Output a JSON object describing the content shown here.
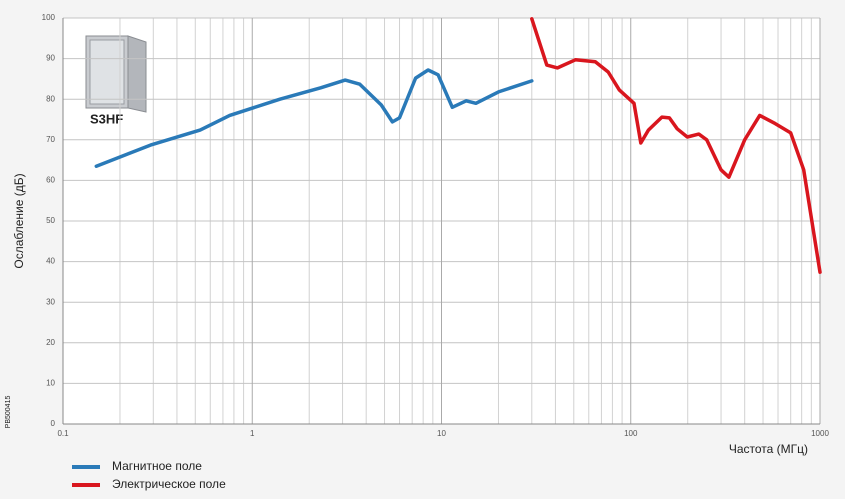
{
  "chart_data": {
    "type": "line",
    "y_label": "Ослабление (дБ)",
    "x_label": "Частота (МГц)",
    "annotations": [
      "S3HF",
      "PB500415"
    ],
    "log_x": true,
    "grid": true,
    "legend": "bottom-left",
    "xlim": [
      0.1,
      1000
    ],
    "xticks": [
      0.1,
      1,
      10,
      100,
      1000
    ],
    "ylim": [
      0,
      100
    ],
    "yticks": [
      0,
      10,
      20,
      30,
      40,
      50,
      60,
      70,
      80,
      90,
      100
    ],
    "series": [
      {
        "name": "Магнитное поле",
        "color": "#2a7ab8",
        "x": [
          0.15,
          0.29,
          0.53,
          0.76,
          1.4,
          2.3,
          3.1,
          3.7,
          4.8,
          5.5,
          6.0,
          7.3,
          8.5,
          9.6,
          11.4,
          13.5,
          15.2,
          20,
          30
        ],
        "values": [
          63.5,
          68.7,
          72.4,
          76,
          80,
          82.8,
          84.7,
          83.7,
          78.6,
          74.4,
          75.4,
          85.2,
          87.2,
          86,
          78,
          79.6,
          79,
          81.8,
          84.5
        ]
      },
      {
        "name": "Электрическое поле",
        "color": "#d9161e",
        "x": [
          30,
          36,
          41,
          51,
          65,
          76,
          87,
          104,
          113,
          124,
          146,
          160,
          176,
          199,
          229,
          252,
          300,
          330,
          400,
          480,
          580,
          700,
          820,
          1000
        ],
        "values": [
          99.8,
          88.4,
          87.7,
          89.7,
          89.2,
          86.7,
          82.3,
          79,
          69.2,
          72.4,
          75.6,
          75.4,
          72.7,
          70.7,
          71.4,
          70,
          62.6,
          60.8,
          70,
          76,
          74,
          71.7,
          62.6,
          37.4
        ]
      }
    ]
  }
}
